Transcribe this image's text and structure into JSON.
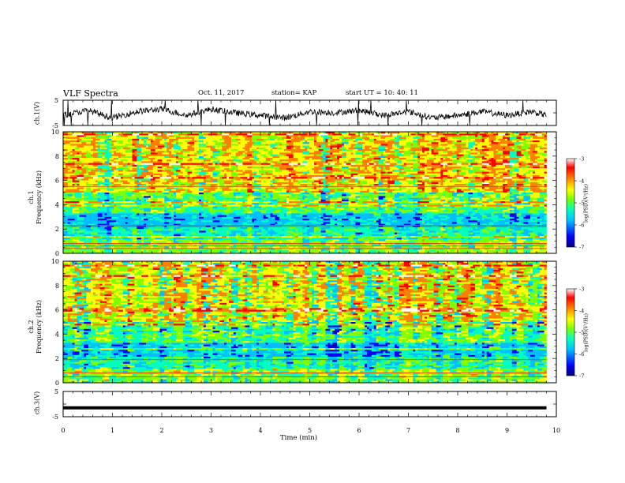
{
  "header": {
    "title": "VLF Spectra",
    "date": "Oct. 11, 2017",
    "station": "station= KAP",
    "start_ut": "start  UT =   10: 40: 11"
  },
  "labels": {
    "ch1_voltage": "ch.1(V)",
    "ch1_freq_line1": "ch.1",
    "ch1_freq_line2": "Frequency  (kHz)",
    "ch2_freq_line1": "ch.2",
    "ch2_freq_line2": "Frequency  (kHz)",
    "ch3_voltage": "ch.3(V)",
    "xlabel": "Time  (min)",
    "colorbar_label": "log(PSD)(V²/Hz)"
  },
  "colors": {
    "waveform": "#000000",
    "colormap": [
      "#00007f",
      "#0000ff",
      "#00bfff",
      "#00ffbf",
      "#7fff00",
      "#ffff00",
      "#ff7f00",
      "#ff0000",
      "#ffffff"
    ]
  },
  "chart_data": [
    {
      "type": "line",
      "name": "ch.1 waveform",
      "ylabel": "ch.1(V)",
      "ylim": [
        -5,
        5
      ],
      "yticks": [
        "5",
        "-5"
      ],
      "xlim": [
        0,
        10
      ],
      "description_of_values": "noisy oscillating voltage trace around 0 V spanning 0 to ~9.8 min",
      "x": [
        0,
        0.5,
        1,
        1.5,
        2,
        2.5,
        3,
        3.5,
        4,
        4.5,
        5,
        5.5,
        6,
        6.5,
        7,
        7.5,
        8,
        8.5,
        9,
        9.5,
        9.8
      ],
      "y": [
        -1,
        1,
        -2,
        0.5,
        1.5,
        -1,
        1.5,
        0,
        -1,
        -2,
        0.5,
        0,
        1,
        -1,
        0.5,
        -2,
        -1,
        0.5,
        -1,
        0.5,
        -1
      ]
    },
    {
      "type": "heatmap",
      "name": "ch.1 spectrogram",
      "ylabel": "Frequency  (kHz)",
      "xlim": [
        0,
        10
      ],
      "ylim": [
        0,
        10
      ],
      "yticks": [
        "0",
        "2",
        "4",
        "6",
        "8",
        "10"
      ],
      "colorbar": {
        "range": [
          -7,
          -3
        ],
        "ticks": [
          "-3",
          "-4",
          "-5",
          "-6",
          "-7"
        ]
      }
    },
    {
      "type": "heatmap",
      "name": "ch.2 spectrogram",
      "ylabel": "Frequency  (kHz)",
      "xlim": [
        0,
        10
      ],
      "ylim": [
        0,
        10
      ],
      "yticks": [
        "0",
        "2",
        "4",
        "6",
        "8",
        "10"
      ],
      "colorbar": {
        "range": [
          -7,
          -3
        ],
        "ticks": [
          "-3",
          "-4",
          "-5",
          "-6",
          "-7"
        ]
      }
    },
    {
      "type": "line",
      "name": "ch.3 waveform",
      "ylabel": "ch.3(V)",
      "ylim": [
        -5,
        5
      ],
      "yticks": [
        "5",
        "-5"
      ],
      "xlim": [
        0,
        10
      ],
      "x": [
        0,
        9.8
      ],
      "y": [
        -1.5,
        -1.5
      ]
    }
  ],
  "xaxis": {
    "label": "Time  (min)",
    "ticks": [
      "0",
      "1",
      "2",
      "3",
      "4",
      "5",
      "6",
      "7",
      "8",
      "9",
      "10"
    ]
  }
}
